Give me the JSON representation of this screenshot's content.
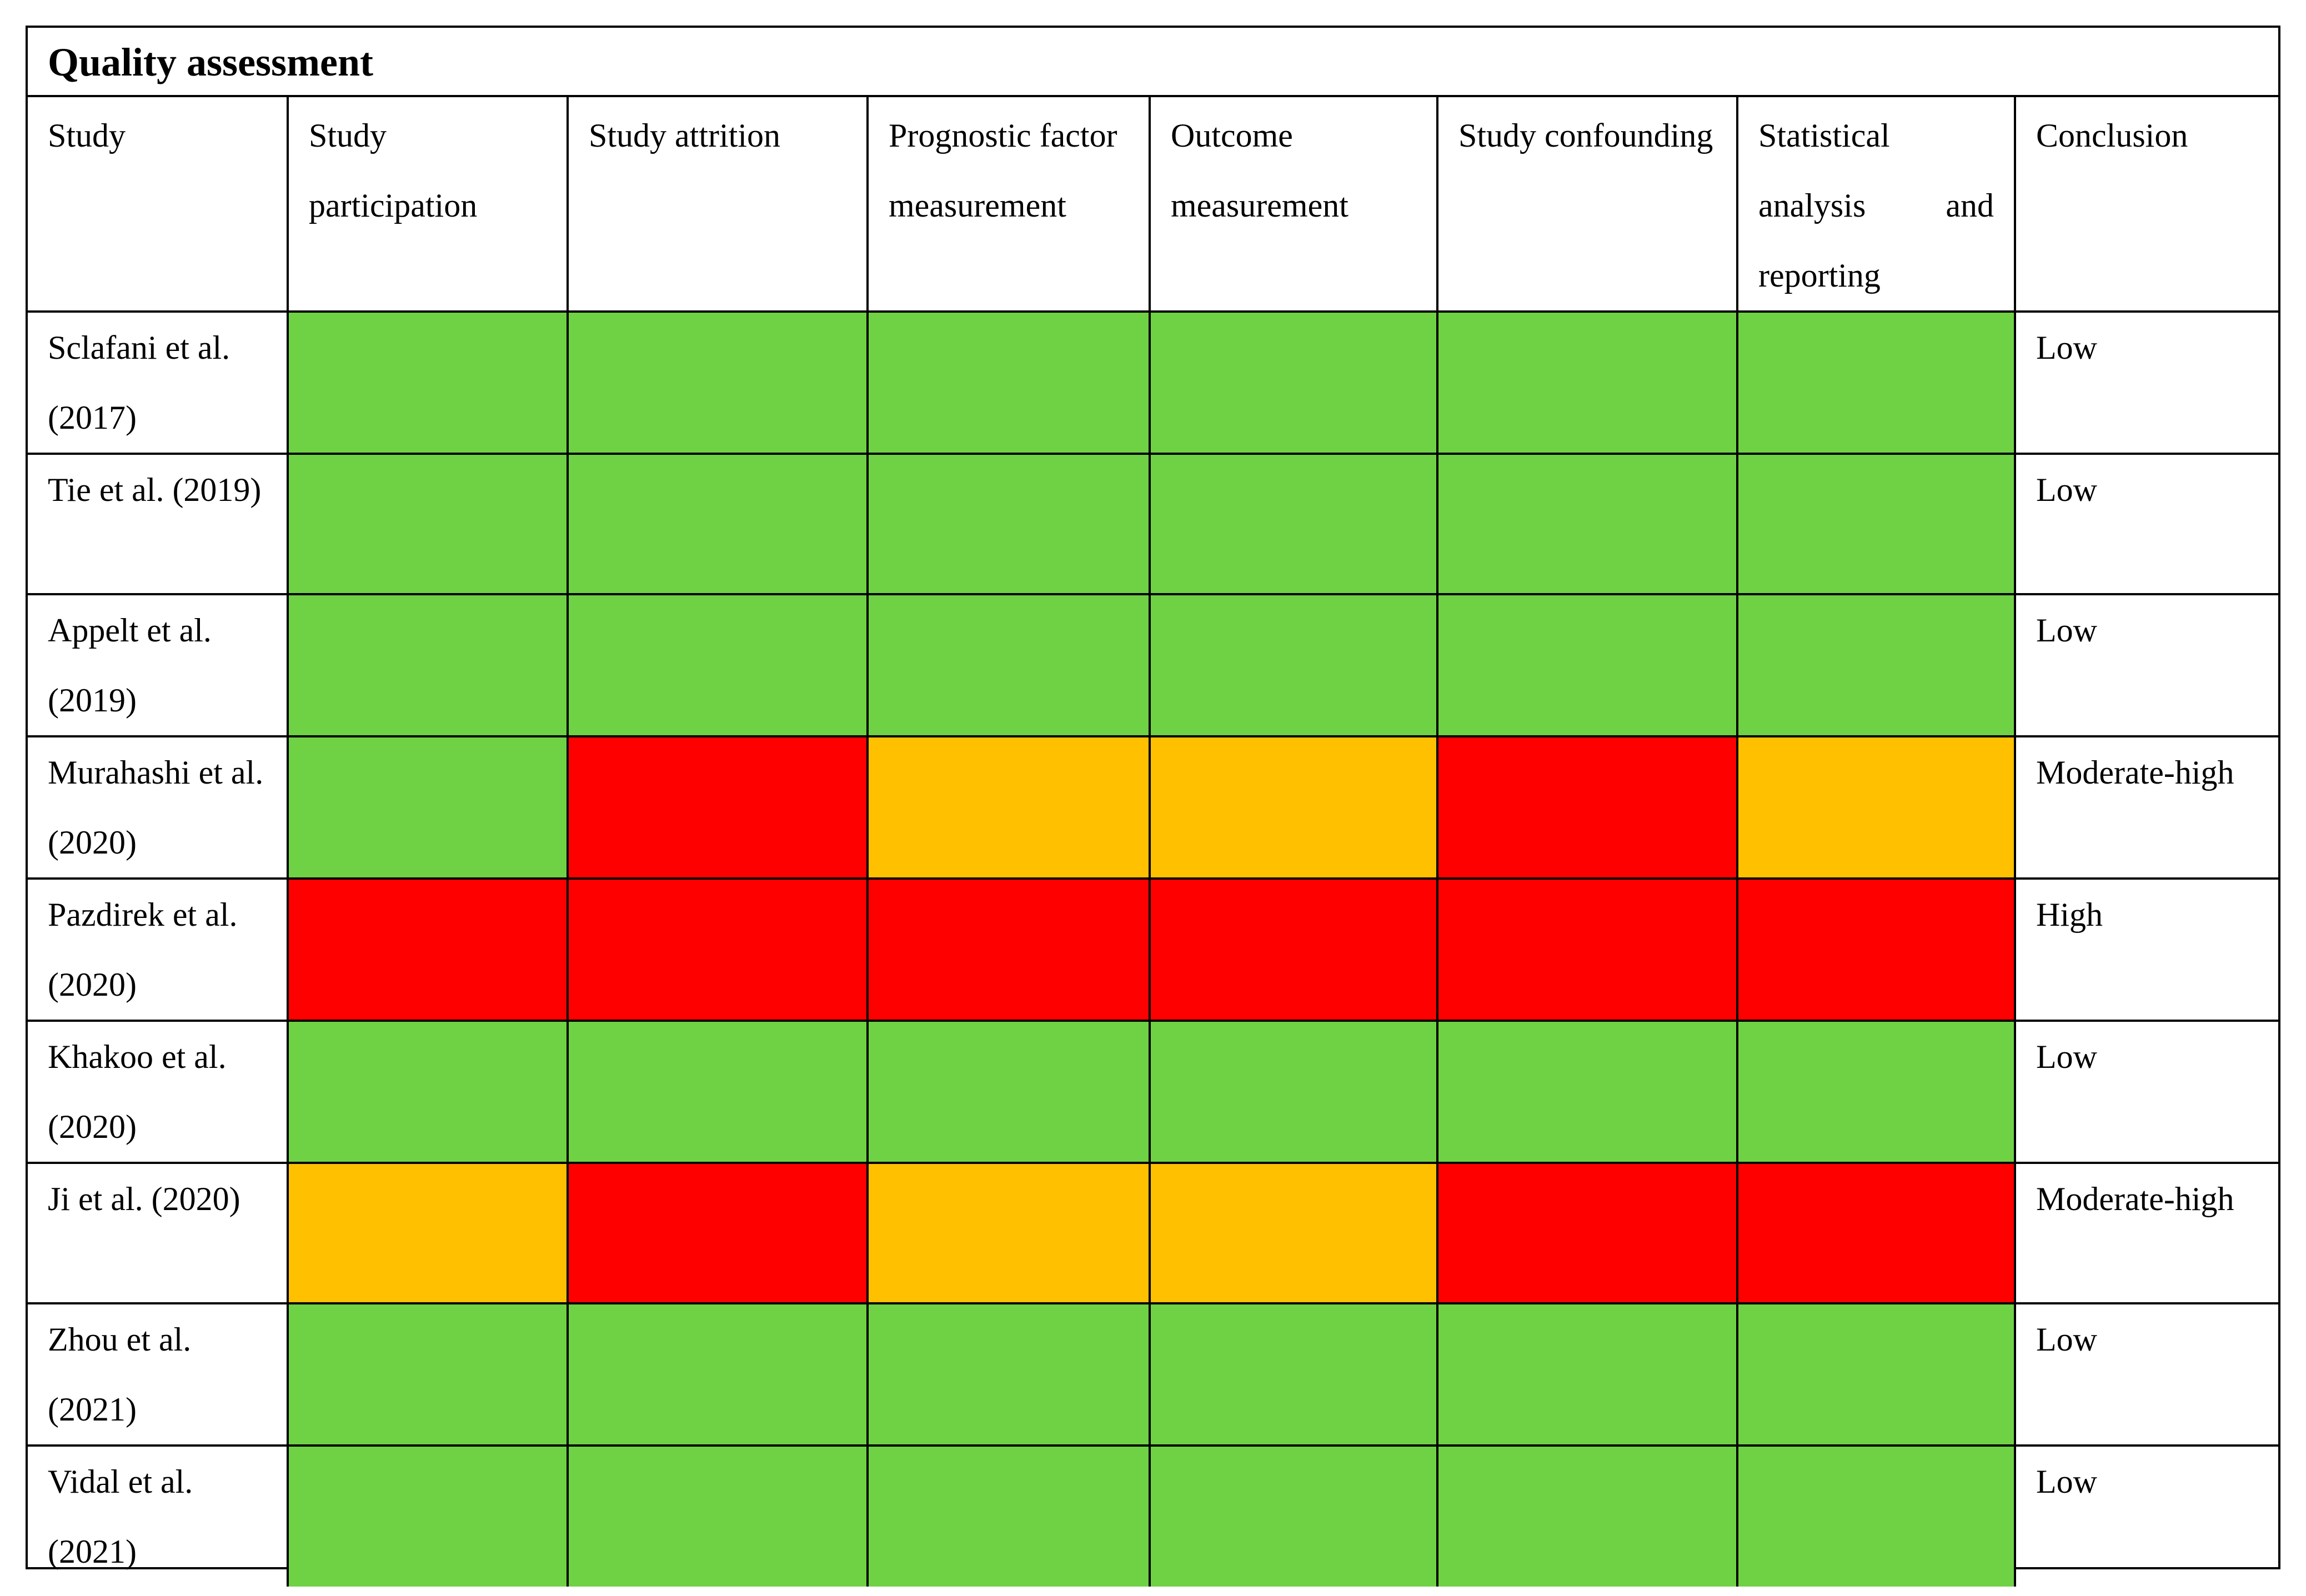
{
  "title": "Quality assessment",
  "headers": [
    "Study",
    "Study participation",
    "Study attrition",
    "Prognostic factor measurement",
    "Outcome measurement",
    "Study confounding",
    "Statistical analysis and reporting",
    "Conclusion"
  ],
  "header_stat_line_left": "analysis",
  "header_stat_line_right": "and",
  "header_stat_line_1": "Statistical",
  "header_stat_line_3": "reporting",
  "colors": {
    "low": "#6fd244",
    "high": "#ff0000",
    "moderate": "#ffc000"
  },
  "rows": [
    {
      "study": "Sclafani et al. (2017)",
      "ratings": [
        "low",
        "low",
        "low",
        "low",
        "low",
        "low"
      ],
      "conclusion": "Low"
    },
    {
      "study": "Tie et al. (2019)",
      "ratings": [
        "low",
        "low",
        "low",
        "low",
        "low",
        "low"
      ],
      "conclusion": "Low"
    },
    {
      "study": "Appelt et al. (2019)",
      "ratings": [
        "low",
        "low",
        "low",
        "low",
        "low",
        "low"
      ],
      "conclusion": "Low"
    },
    {
      "study": "Murahashi et al. (2020)",
      "ratings": [
        "low",
        "high",
        "moderate",
        "moderate",
        "high",
        "moderate"
      ],
      "conclusion": "Moderate-high"
    },
    {
      "study": "Pazdirek et al. (2020)",
      "ratings": [
        "high",
        "high",
        "high",
        "high",
        "high",
        "high"
      ],
      "conclusion": "High"
    },
    {
      "study": "Khakoo et al. (2020)",
      "ratings": [
        "low",
        "low",
        "low",
        "low",
        "low",
        "low"
      ],
      "conclusion": "Low"
    },
    {
      "study": "Ji et al. (2020)",
      "ratings": [
        "moderate",
        "high",
        "moderate",
        "moderate",
        "high",
        "high"
      ],
      "conclusion": "Moderate-high"
    },
    {
      "study": "Zhou et al. (2021)",
      "ratings": [
        "low",
        "low",
        "low",
        "low",
        "low",
        "low"
      ],
      "conclusion": "Low"
    },
    {
      "study": "Vidal et al. (2021)",
      "ratings": [
        "low",
        "low",
        "low",
        "low",
        "low",
        "low"
      ],
      "conclusion": "Low"
    }
  ]
}
